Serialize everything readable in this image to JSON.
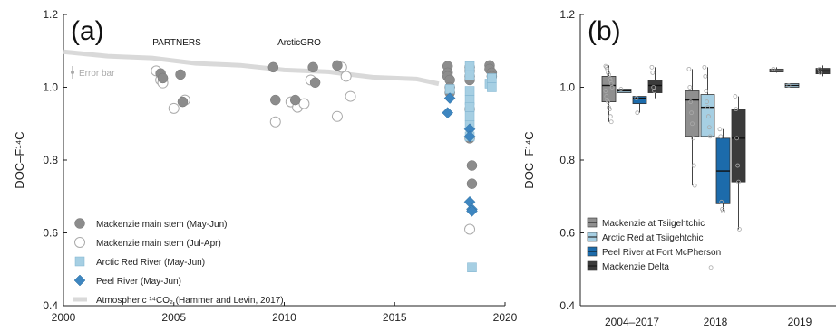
{
  "chart_data": [
    {
      "panel": "(a)",
      "type": "scatter",
      "ylabel": "DOC–F¹⁴C",
      "xlim": [
        2000,
        2020
      ],
      "ylim": [
        0.4,
        1.2
      ],
      "xticks": [
        "2000",
        "2005",
        "2010",
        "2015",
        "2020"
      ],
      "yticks": [
        "0.4",
        "0.6",
        "0.8",
        "1.0",
        "1.2"
      ],
      "annotations": [
        "PARTNERS",
        "ArcticGRO",
        "Error bar"
      ],
      "legend": [
        {
          "label": "Mackenzie main stem (May-Jun)",
          "key": "mms_mj"
        },
        {
          "label": "Mackenzie main stem (Jul-Apr)",
          "key": "mms_ja"
        },
        {
          "label": "Arctic Red River (May-Jun)",
          "key": "arr"
        },
        {
          "label": "Peel River (May-Jun)",
          "key": "peel"
        },
        {
          "label": "Atmospheric ¹⁴CO₂ (Hammer and Levin, 2017)",
          "key": "atm"
        }
      ],
      "series": [
        {
          "name": "Mackenzie main stem (May-Jun)",
          "color": "#8c8c8c",
          "marker": "circle-filled",
          "x": [
            2004.4,
            2004.5,
            2005.3,
            2005.4,
            2009.5,
            2009.6,
            2010.5,
            2011.3,
            2011.4,
            2012.4,
            2017.4,
            2017.4,
            2017.4,
            2017.5,
            2017.5,
            2017.5,
            2018.4,
            2018.4,
            2018.4,
            2018.4,
            2018.4,
            2018.4,
            2018.5,
            2018.5,
            2019.3,
            2019.3,
            2019.4,
            2019.4
          ],
          "y": [
            1.038,
            1.025,
            1.035,
            0.96,
            1.055,
            0.965,
            0.965,
            1.055,
            1.013,
            1.06,
            1.058,
            1.04,
            1.03,
            1.02,
            1.0,
            0.985,
            1.055,
            1.045,
            1.03,
            1.02,
            0.94,
            0.86,
            0.785,
            0.735,
            1.06,
            1.05,
            1.04,
            1.03
          ]
        },
        {
          "name": "Mackenzie main stem (Jul-Apr)",
          "color": "#ffffff",
          "marker": "circle-open",
          "x": [
            2004.2,
            2004.4,
            2004.5,
            2005.0,
            2005.5,
            2009.6,
            2010.3,
            2010.6,
            2010.9,
            2011.2,
            2012.4,
            2012.6,
            2012.8,
            2013.0,
            2018.4
          ],
          "y": [
            1.045,
            1.02,
            1.012,
            0.942,
            0.965,
            0.905,
            0.96,
            0.945,
            0.955,
            1.02,
            0.92,
            1.055,
            1.03,
            0.975,
            0.61
          ]
        },
        {
          "name": "Arctic Red River (May-Jun)",
          "color": "#a6cfe3",
          "marker": "square",
          "x": [
            2017.5,
            2018.4,
            2018.4,
            2018.4,
            2018.4,
            2018.4,
            2018.4,
            2018.4,
            2018.4,
            2018.5,
            2019.3,
            2019.4,
            2019.4
          ],
          "y": [
            0.995,
            1.058,
            1.032,
            0.99,
            0.965,
            0.945,
            0.92,
            0.895,
            0.865,
            0.505,
            1.01,
            1.0,
            1.025
          ]
        },
        {
          "name": "Peel River (May-Jun)",
          "color": "#3e86c0",
          "marker": "diamond",
          "x": [
            2017.4,
            2017.5,
            2018.4,
            2018.4,
            2018.4,
            2018.5,
            2018.5
          ],
          "y": [
            0.93,
            0.97,
            0.885,
            0.865,
            0.685,
            0.665,
            0.66
          ]
        },
        {
          "name": "Atmospheric ¹⁴CO₂ (Hammer and Levin, 2017)",
          "color": "#d9d9d9",
          "marker": "band",
          "x": [
            2000,
            2002,
            2004,
            2006,
            2008,
            2010,
            2012,
            2014,
            2016,
            2017
          ],
          "y": [
            1.095,
            1.088,
            1.078,
            1.068,
            1.058,
            1.05,
            1.04,
            1.03,
            1.02,
            1.012
          ]
        }
      ]
    },
    {
      "panel": "(b)",
      "type": "box",
      "ylabel": "DOC–F¹⁴C",
      "ylim": [
        0.4,
        1.2
      ],
      "categories": [
        "2004–2017",
        "2018",
        "2019"
      ],
      "yticks": [
        "0.4",
        "0.6",
        "0.8",
        "1.0",
        "1.2"
      ],
      "legend": [
        {
          "label": "Mackenzie at Tsiigehtchic",
          "color": "#8f8f8f"
        },
        {
          "label": "Arctic Red at Tsiigehtchic",
          "color": "#a6cfe3"
        },
        {
          "label": "Peel River at Fort McPherson",
          "color": "#1c6bab"
        },
        {
          "label": "Mackenzie Delta",
          "color": "#3b3b3b"
        }
      ],
      "boxes": [
        {
          "category": "2004–2017",
          "group": "Mackenzie at Tsiigehtchic",
          "min": 0.905,
          "q1": 0.96,
          "median": 1.005,
          "q3": 1.03,
          "max": 1.06
        },
        {
          "category": "2004–2017",
          "group": "Arctic Red at Tsiigehtchic",
          "min": 0.985,
          "q1": 0.985,
          "median": 0.99,
          "q3": 0.995,
          "max": 0.995
        },
        {
          "category": "2004–2017",
          "group": "Peel River at Fort McPherson",
          "min": 0.93,
          "q1": 0.955,
          "median": 0.97,
          "q3": 0.975,
          "max": 0.975
        },
        {
          "category": "2004–2017",
          "group": "Mackenzie Delta",
          "min": 0.97,
          "q1": 0.985,
          "median": 1.005,
          "q3": 1.02,
          "max": 1.055
        },
        {
          "category": "2018",
          "group": "Mackenzie at Tsiigehtchic",
          "min": 0.73,
          "q1": 0.865,
          "median": 0.965,
          "q3": 0.99,
          "max": 1.05
        },
        {
          "category": "2018",
          "group": "Arctic Red at Tsiigehtchic",
          "min": 0.865,
          "q1": 0.865,
          "median": 0.945,
          "q3": 0.98,
          "max": 1.055
        },
        {
          "category": "2018",
          "group": "Peel River at Fort McPherson",
          "min": 0.66,
          "q1": 0.68,
          "median": 0.77,
          "q3": 0.86,
          "max": 0.885
        },
        {
          "category": "2018",
          "group": "Mackenzie Delta",
          "min": 0.61,
          "q1": 0.74,
          "median": 0.86,
          "q3": 0.94,
          "max": 0.975
        },
        {
          "category": "2019",
          "group": "Mackenzie at Tsiigehtchic",
          "min": 1.04,
          "q1": 1.042,
          "median": 1.045,
          "q3": 1.05,
          "max": 1.055
        },
        {
          "category": "2019",
          "group": "Arctic Red at Tsiigehtchic",
          "min": 1.0,
          "q1": 1.0,
          "median": 1.005,
          "q3": 1.01,
          "max": 1.01
        },
        {
          "category": "2019",
          "group": "Mackenzie Delta",
          "min": 1.03,
          "q1": 1.037,
          "median": 1.045,
          "q3": 1.052,
          "max": 1.06
        }
      ],
      "points": [
        {
          "category": "2004–2017",
          "group": "Mackenzie at Tsiigehtchic",
          "values": [
            1.058,
            1.055,
            1.05,
            1.04,
            1.035,
            1.025,
            1.02,
            1.01,
            1.0,
            0.99,
            0.975,
            0.965,
            0.96,
            0.945,
            0.94,
            0.92,
            0.905
          ]
        },
        {
          "category": "2004–2017",
          "group": "Arctic Red at Tsiigehtchic",
          "values": [
            0.995
          ]
        },
        {
          "category": "2004–2017",
          "group": "Peel River at Fort McPherson",
          "values": [
            0.97,
            0.93
          ]
        },
        {
          "category": "2004–2017",
          "group": "Mackenzie Delta",
          "values": [
            1.055,
            1.04,
            1.0,
            0.99
          ]
        },
        {
          "category": "2018",
          "group": "Mackenzie at Tsiigehtchic",
          "values": [
            1.05,
            1.0,
            0.96,
            0.93,
            0.9,
            0.86,
            0.785,
            0.73
          ]
        },
        {
          "category": "2018",
          "group": "Arctic Red at Tsiigehtchic",
          "values": [
            1.055,
            1.03,
            0.99,
            0.96,
            0.945,
            0.92,
            0.89,
            0.865,
            0.505
          ]
        },
        {
          "category": "2018",
          "group": "Peel River at Fort McPherson",
          "values": [
            0.885,
            0.865,
            0.685,
            0.665,
            0.66
          ]
        },
        {
          "category": "2018",
          "group": "Mackenzie Delta",
          "values": [
            0.975,
            0.94,
            0.86,
            0.785,
            0.74,
            0.61
          ]
        },
        {
          "category": "2019",
          "group": "Mackenzie at Tsiigehtchic",
          "values": [
            1.05
          ]
        },
        {
          "category": "2019",
          "group": "Arctic Red at Tsiigehtchic",
          "values": [
            1.005
          ]
        },
        {
          "category": "2019",
          "group": "Mackenzie Delta",
          "values": [
            1.05,
            1.04
          ]
        }
      ]
    }
  ]
}
